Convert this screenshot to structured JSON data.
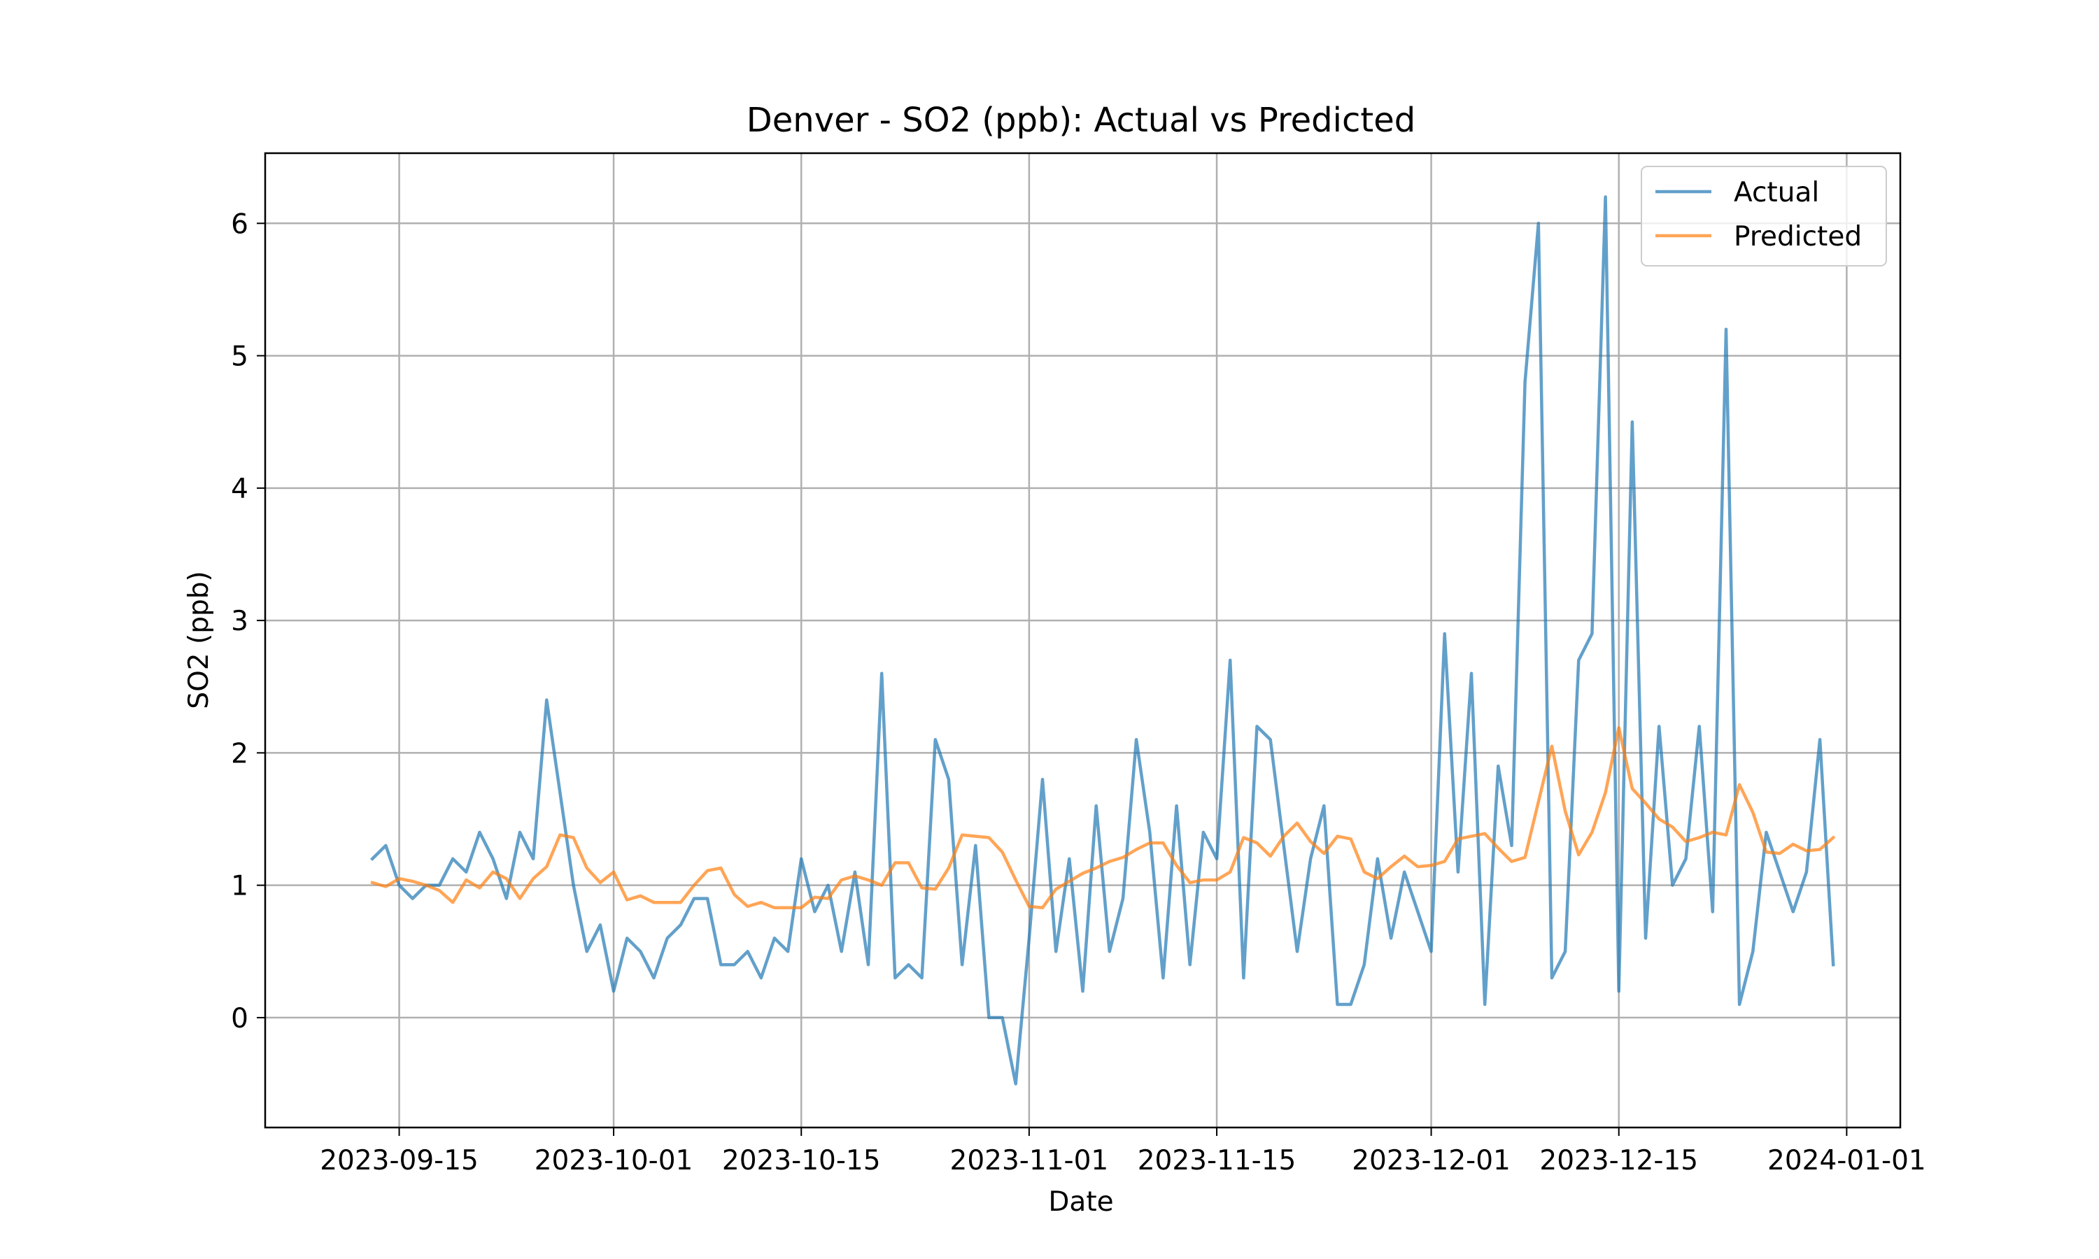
{
  "chart_data": {
    "type": "line",
    "title": "Denver - SO2 (ppb): Actual vs Predicted",
    "xlabel": "Date",
    "ylabel": "SO2 (ppb)",
    "xlim": [
      "2023-09-05",
      "2024-01-05"
    ],
    "ylim": [
      -0.83,
      6.53
    ],
    "x_ticks": [
      "2023-09-15",
      "2023-10-01",
      "2023-10-15",
      "2023-11-01",
      "2023-11-15",
      "2023-12-01",
      "2023-12-15",
      "2024-01-01"
    ],
    "y_ticks": [
      0,
      1,
      2,
      3,
      4,
      5,
      6
    ],
    "grid": true,
    "legend": "upper-right",
    "x_start": "2023-09-13",
    "x_end": "2023-12-31",
    "series": [
      {
        "name": "Actual",
        "color": "#1f77b4",
        "values": [
          1.2,
          1.3,
          1.0,
          0.9,
          1.0,
          1.0,
          1.2,
          1.1,
          1.4,
          1.2,
          0.9,
          1.4,
          1.2,
          2.4,
          1.7,
          1.0,
          0.5,
          0.7,
          0.2,
          0.6,
          0.5,
          0.3,
          0.6,
          0.7,
          0.9,
          0.9,
          0.4,
          0.4,
          0.5,
          0.3,
          0.6,
          0.5,
          1.2,
          0.8,
          1.0,
          0.5,
          1.1,
          0.4,
          2.6,
          0.3,
          0.4,
          0.3,
          2.1,
          1.8,
          0.4,
          1.3,
          0.0,
          0.0,
          -0.5,
          0.6,
          1.8,
          0.5,
          1.2,
          0.2,
          1.6,
          0.5,
          0.9,
          2.1,
          1.4,
          0.3,
          1.6,
          0.4,
          1.4,
          1.2,
          2.7,
          0.3,
          2.2,
          2.1,
          1.3,
          0.5,
          1.2,
          1.6,
          0.1,
          0.1,
          0.4,
          1.2,
          0.6,
          1.1,
          0.8,
          0.5,
          2.9,
          1.1,
          2.6,
          0.1,
          1.9,
          1.3,
          4.8,
          6.0,
          0.3,
          0.5,
          2.7,
          2.9,
          6.2,
          0.2,
          4.5,
          0.6,
          2.2,
          1.0,
          1.2,
          2.2,
          0.8,
          5.2,
          0.1,
          0.5,
          1.4,
          1.1,
          0.8,
          1.1,
          2.1,
          0.4
        ]
      },
      {
        "name": "Predicted",
        "color": "#ff7f0e",
        "values": [
          1.02,
          0.99,
          1.05,
          1.03,
          1.0,
          0.96,
          0.87,
          1.04,
          0.98,
          1.1,
          1.05,
          0.9,
          1.05,
          1.14,
          1.38,
          1.36,
          1.13,
          1.02,
          1.1,
          0.89,
          0.92,
          0.87,
          0.87,
          0.87,
          1.0,
          1.11,
          1.13,
          0.93,
          0.84,
          0.87,
          0.83,
          0.83,
          0.83,
          0.91,
          0.9,
          1.04,
          1.07,
          1.04,
          1.0,
          1.17,
          1.17,
          0.98,
          0.97,
          1.13,
          1.38,
          1.37,
          1.36,
          1.25,
          1.04,
          0.84,
          0.83,
          0.97,
          1.03,
          1.09,
          1.13,
          1.18,
          1.21,
          1.27,
          1.32,
          1.32,
          1.15,
          1.02,
          1.04,
          1.04,
          1.1,
          1.36,
          1.32,
          1.22,
          1.37,
          1.47,
          1.33,
          1.24,
          1.37,
          1.35,
          1.1,
          1.05,
          1.14,
          1.22,
          1.14,
          1.15,
          1.18,
          1.35,
          1.37,
          1.39,
          1.28,
          1.18,
          1.21,
          1.63,
          2.05,
          1.56,
          1.23,
          1.4,
          1.7,
          2.19,
          1.73,
          1.62,
          1.5,
          1.44,
          1.33,
          1.36,
          1.4,
          1.38,
          1.76,
          1.55,
          1.25,
          1.24,
          1.31,
          1.26,
          1.27,
          1.36
        ]
      }
    ]
  }
}
